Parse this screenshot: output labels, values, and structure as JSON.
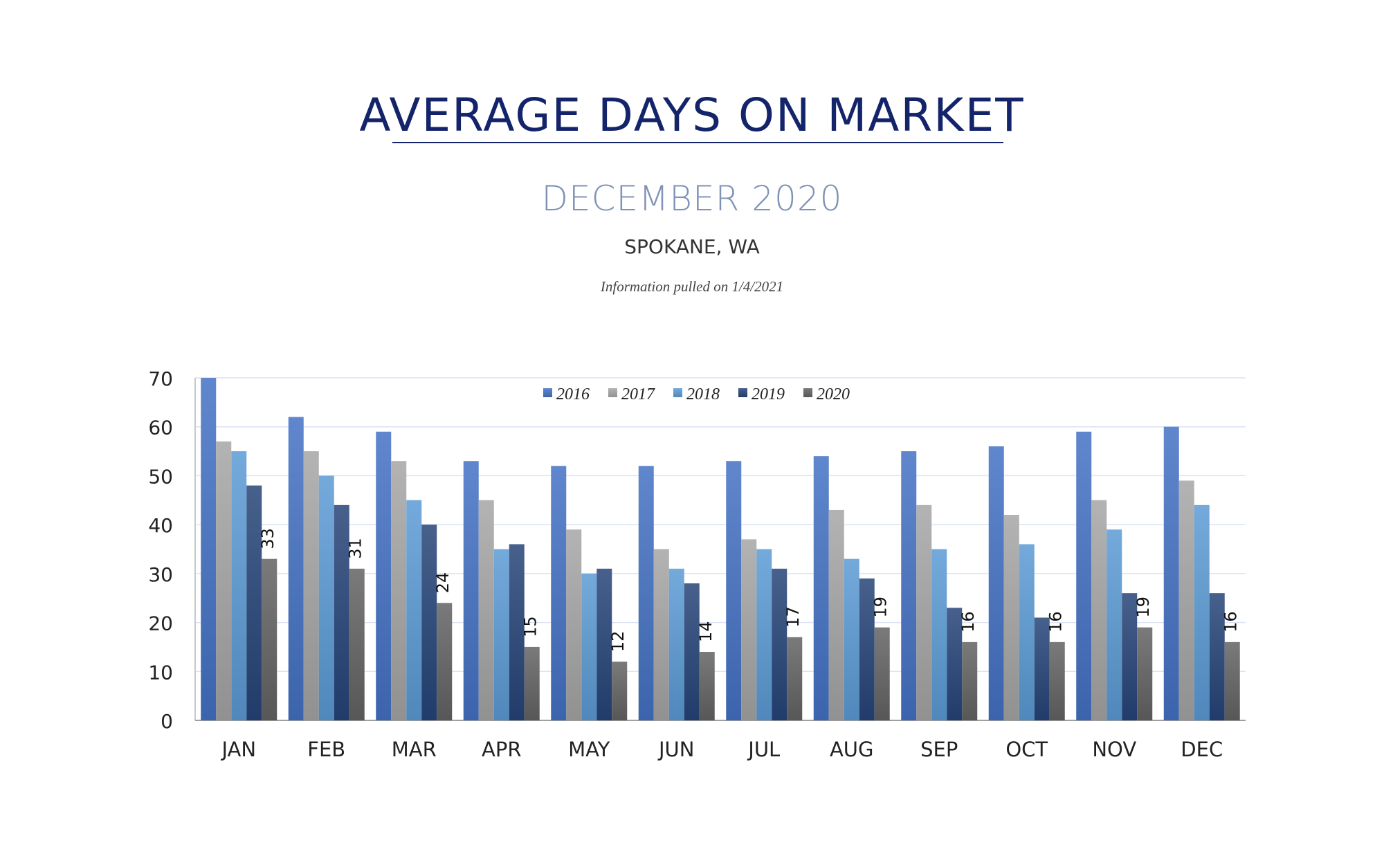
{
  "header": {
    "title": "AVERAGE DAYS ON MARKET",
    "subtitle": "DECEMBER 2020",
    "location": "SPOKANE, WA",
    "info": "Information pulled on 1/4/2021"
  },
  "chart_data": {
    "type": "bar",
    "title": "AVERAGE DAYS ON MARKET",
    "categories": [
      "JAN",
      "FEB",
      "MAR",
      "APR",
      "MAY",
      "JUN",
      "JUL",
      "AUG",
      "SEP",
      "OCT",
      "NOV",
      "DEC"
    ],
    "ylim": [
      0,
      70
    ],
    "yticks": [
      0,
      10,
      20,
      30,
      40,
      50,
      60,
      70
    ],
    "grid": true,
    "legend": "top-center",
    "series": [
      {
        "name": "2016",
        "color": "#4472c4",
        "values": [
          70,
          62,
          59,
          53,
          52,
          52,
          53,
          54,
          55,
          56,
          59,
          60
        ]
      },
      {
        "name": "2017",
        "color": "#a5a5a5",
        "values": [
          57,
          55,
          53,
          45,
          39,
          35,
          37,
          43,
          44,
          42,
          45,
          49
        ]
      },
      {
        "name": "2018",
        "color": "#5b9bd5",
        "values": [
          55,
          50,
          45,
          35,
          30,
          31,
          35,
          33,
          35,
          36,
          39,
          44
        ]
      },
      {
        "name": "2019",
        "color": "#264478",
        "values": [
          48,
          44,
          40,
          36,
          31,
          28,
          31,
          29,
          23,
          21,
          26,
          26
        ]
      },
      {
        "name": "2020",
        "color": "#636363",
        "values": [
          33,
          31,
          24,
          15,
          12,
          14,
          17,
          19,
          16,
          16,
          19,
          16
        ],
        "data_labels": true
      }
    ]
  }
}
